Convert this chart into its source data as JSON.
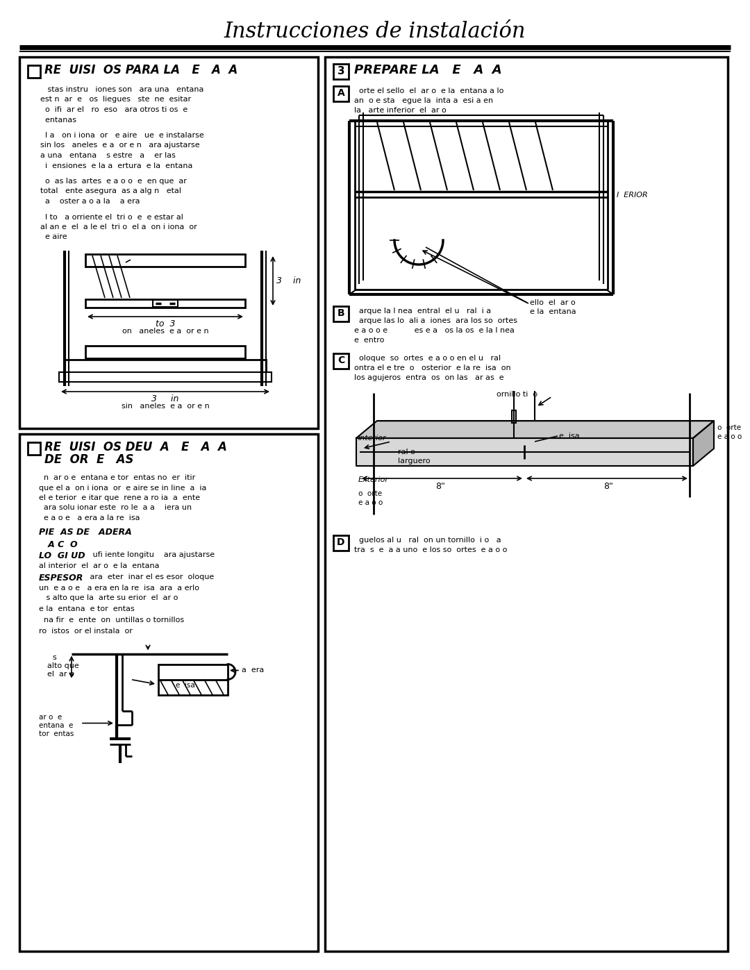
{
  "title": "Instrucciones de instalación",
  "bg_color": "#ffffff",
  "s1_title_line1": "□  RE  UISI  OS PARA LA   E   A  A",
  "s1_body": [
    "   stas instru   iones son   ara una   entana",
    "est n  ar  e   os  liegues   ste  ne  esitar",
    "  o  ifi  ar el   ro  eso   ara otros ti os  e",
    "  entanas",
    "",
    "  l a   on i iona  or   e aire   ue  e instalarse",
    "sin los   aneles  e a  or e n   ara ajustarse",
    "a una   entana    s estre   a    er las",
    "  i  ensiones  e la a  ertura  e la  entana",
    "",
    "  o  as las  artes  e a o o  e  en que  ar",
    "total   ente asegura  as a alg n   etal",
    "  a    oster a o a la    a era",
    "",
    "  l to   a orriente el  tri o  e  e estar al",
    "al an e  el  a le el  tri o  el a  on i iona  or",
    "  e aire"
  ],
  "s2_title_line1": "□  RE  UISI  OS DEU  A   E   A  A",
  "s2_title_line2": "DE  OR  E   AS",
  "s2_body": [
    "  n  ar o e  entana e tor  entas no  er  itir",
    "que el a  on i iona  or  e aire se in line  a  ia",
    "el e terior  e itar que  rene a ro ia  a  ente",
    "  ara solu ionar este  ro le  a a    iera un",
    "  e a o e   a era a la re  isa"
  ],
  "s2_sub1": "PIE  AS DE   ADERA",
  "s2_sub2": "   A C  O",
  "s2_longitud_italic": "LO  GI UD",
  "s2_longitud_rest": "     ufi iente longitu    ara ajustarse",
  "s2_longitud2": "al interior  el  ar o  e la  entana",
  "s2_espesor_italic": "ESPESOR",
  "s2_espesor_rest": "     ara  eter  inar el es esor  oloque",
  "s2_espesor2": "un  e a o e   a era en la re  isa  ara  a erlo",
  "s2_espesor3": "   s alto que la  arte su erior  el  ar o",
  "s2_espesor4": "e la  entana  e tor  entas",
  "s2_note1": "  na fir  e  ente  on  untillas o tornillos",
  "s2_note2": "ro  istos  or el instala  or",
  "s3_title": "PREPARE LA   E   A  A",
  "s3A_line1": "  orte el sello  el  ar o  e la  entana a lo",
  "s3A_line2": "an  o e sta   egue la  inta a  esi a en",
  "s3A_line3": "la   arte inferior  el  ar o",
  "s3_interior": "I  ERIOR",
  "s3_seal1": "ello  el  ar o",
  "s3_seal2": "e la  entana",
  "s3B_line1": "  arque la l nea  entral  el u   ral  i a",
  "s3B_line2": "  arque las lo  ali a  iones  ara los so  ortes",
  "s3B_line3": "e a o o e           es e a   os la os  e la l nea",
  "s3B_line4": "e  entro",
  "s3C_line1": "  oloque  so  ortes  e a o o en el u   ral",
  "s3C_line2": "ontra el e tre  o   osterior  e la re  isa  on",
  "s3C_line3": "los agujeros  entra  os  on las   ar as  e",
  "s3C_screw": "ornillo ti  o",
  "s3C_interior": "Interior",
  "s3C_shim": "e  isa",
  "s3C_rail": "ral o",
  "s3C_larguero": "larguero",
  "s3C_8a": "8\"",
  "s3C_8b": "8\"",
  "s3C_exterior": "Exterior",
  "s3C_corte1": "o  orte",
  "s3C_eaoo1": "e a o o",
  "s3C_corte2": "o  orte",
  "s3C_eaoo2": "e a o o",
  "s3D_line1": "  guelos al u   ral  on un tornillo  i o   a",
  "s3D_line2": "tra  s  e  a a uno  e los so  ortes  e a o o"
}
